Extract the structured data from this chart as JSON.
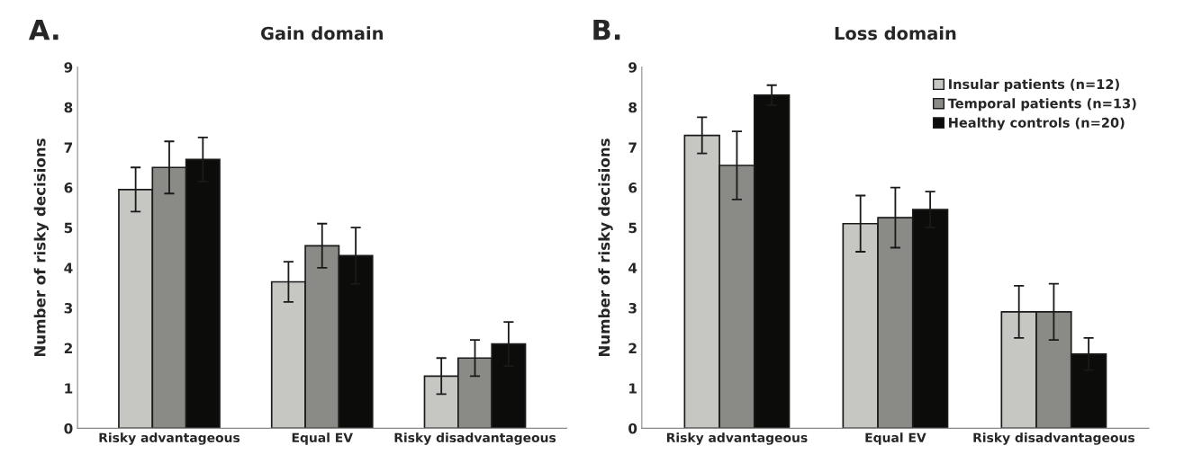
{
  "chart_data": [
    {
      "type": "bar",
      "title": "Gain domain",
      "ylabel": "Number of risky decisions",
      "annotations": [
        "A."
      ],
      "categories": [
        "Risky advantageous",
        "Equal EV",
        "Risky disadvantageous"
      ],
      "series": [
        {
          "color": "#c6c6c3",
          "values": [
            5.95,
            3.65,
            1.3
          ],
          "errors": [
            0.55,
            0.5,
            0.45
          ]
        },
        {
          "color": "#8a8b87",
          "values": [
            6.5,
            4.55,
            1.75
          ],
          "errors": [
            0.65,
            0.55,
            0.45
          ]
        },
        {
          "color": "#0c0c0a",
          "values": [
            6.7,
            4.3,
            2.1
          ],
          "errors": [
            0.55,
            0.7,
            0.55
          ]
        }
      ],
      "ylim": [
        0,
        9
      ],
      "yticks": [
        0,
        1,
        2,
        3,
        4,
        5,
        6,
        7,
        8,
        9
      ],
      "grid": false,
      "legend": false
    },
    {
      "type": "bar",
      "title": "Loss domain",
      "ylabel": "Number of risky decisions",
      "annotations": [
        "B."
      ],
      "categories": [
        "Risky advantageous",
        "Equal EV",
        "Risky disadvantageous"
      ],
      "series": [
        {
          "name": "Insular patients (n=12)",
          "color": "#c6c6c3",
          "values": [
            7.3,
            5.1,
            2.9
          ],
          "errors": [
            0.45,
            0.7,
            0.65
          ]
        },
        {
          "name": "Temporal patients (n=13)",
          "color": "#8a8b87",
          "values": [
            6.55,
            5.25,
            2.9
          ],
          "errors": [
            0.85,
            0.75,
            0.7
          ]
        },
        {
          "name": "Healthy controls (n=20)",
          "color": "#0c0c0a",
          "values": [
            8.3,
            5.45,
            1.85
          ],
          "errors": [
            0.25,
            0.45,
            0.4
          ]
        }
      ],
      "ylim": [
        0,
        9
      ],
      "yticks": [
        0,
        1,
        2,
        3,
        4,
        5,
        6,
        7,
        8,
        9
      ],
      "grid": false,
      "legend": "top right"
    }
  ]
}
